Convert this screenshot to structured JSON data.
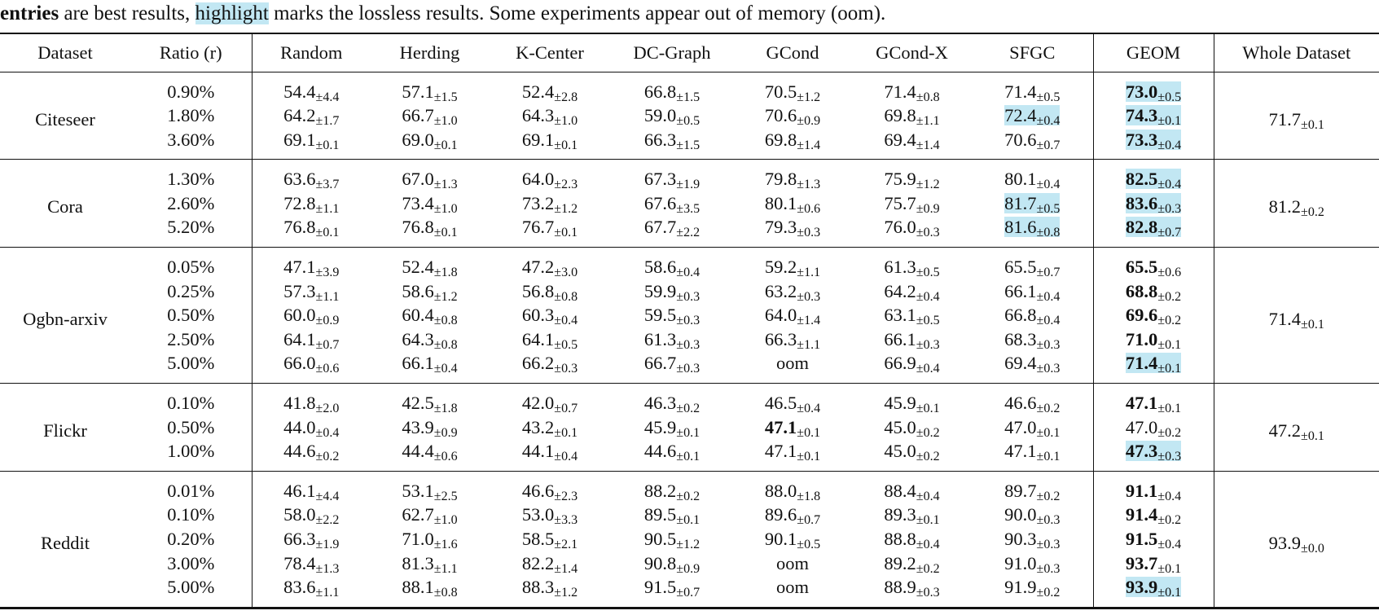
{
  "caption": [
    {
      "text": "entries",
      "bold": true
    },
    {
      "text": " are best results, "
    },
    {
      "text": "highlight",
      "highlight": true
    },
    {
      "text": " marks the lossless results. Some experiments appear out of memory (oom)."
    }
  ],
  "table": {
    "header": [
      "Dataset",
      "Ratio (r)",
      "Random",
      "Herding",
      "K-Center",
      "DC-Graph",
      "GCond",
      "GCond-X",
      "SFGC",
      "GEOM",
      "Whole Dataset"
    ],
    "groups": [
      {
        "dataset": "Citeseer",
        "whole": {
          "v": "71.7",
          "s": "±0.1"
        },
        "rows": [
          {
            "ratio": "0.90%",
            "cells": [
              {
                "v": "54.4",
                "s": "±4.4"
              },
              {
                "v": "57.1",
                "s": "±1.5"
              },
              {
                "v": "52.4",
                "s": "±2.8"
              },
              {
                "v": "66.8",
                "s": "±1.5"
              },
              {
                "v": "70.5",
                "s": "±1.2"
              },
              {
                "v": "71.4",
                "s": "±0.8"
              },
              {
                "v": "71.4",
                "s": "±0.5"
              },
              {
                "v": "73.0",
                "s": "±0.5",
                "bold": true,
                "highlight": true
              }
            ]
          },
          {
            "ratio": "1.80%",
            "cells": [
              {
                "v": "64.2",
                "s": "±1.7"
              },
              {
                "v": "66.7",
                "s": "±1.0"
              },
              {
                "v": "64.3",
                "s": "±1.0"
              },
              {
                "v": "59.0",
                "s": "±0.5"
              },
              {
                "v": "70.6",
                "s": "±0.9"
              },
              {
                "v": "69.8",
                "s": "±1.1"
              },
              {
                "v": "72.4",
                "s": "±0.4",
                "highlight": true
              },
              {
                "v": "74.3",
                "s": "±0.1",
                "bold": true,
                "highlight": true
              }
            ]
          },
          {
            "ratio": "3.60%",
            "cells": [
              {
                "v": "69.1",
                "s": "±0.1"
              },
              {
                "v": "69.0",
                "s": "±0.1"
              },
              {
                "v": "69.1",
                "s": "±0.1"
              },
              {
                "v": "66.3",
                "s": "±1.5"
              },
              {
                "v": "69.8",
                "s": "±1.4"
              },
              {
                "v": "69.4",
                "s": "±1.4"
              },
              {
                "v": "70.6",
                "s": "±0.7"
              },
              {
                "v": "73.3",
                "s": "±0.4",
                "bold": true,
                "highlight": true
              }
            ]
          }
        ]
      },
      {
        "dataset": "Cora",
        "whole": {
          "v": "81.2",
          "s": "±0.2"
        },
        "rows": [
          {
            "ratio": "1.30%",
            "cells": [
              {
                "v": "63.6",
                "s": "±3.7"
              },
              {
                "v": "67.0",
                "s": "±1.3"
              },
              {
                "v": "64.0",
                "s": "±2.3"
              },
              {
                "v": "67.3",
                "s": "±1.9"
              },
              {
                "v": "79.8",
                "s": "±1.3"
              },
              {
                "v": "75.9",
                "s": "±1.2"
              },
              {
                "v": "80.1",
                "s": "±0.4"
              },
              {
                "v": "82.5",
                "s": "±0.4",
                "bold": true,
                "highlight": true
              }
            ]
          },
          {
            "ratio": "2.60%",
            "cells": [
              {
                "v": "72.8",
                "s": "±1.1"
              },
              {
                "v": "73.4",
                "s": "±1.0"
              },
              {
                "v": "73.2",
                "s": "±1.2"
              },
              {
                "v": "67.6",
                "s": "±3.5"
              },
              {
                "v": "80.1",
                "s": "±0.6"
              },
              {
                "v": "75.7",
                "s": "±0.9"
              },
              {
                "v": "81.7",
                "s": "±0.5",
                "highlight": true
              },
              {
                "v": "83.6",
                "s": "±0.3",
                "bold": true,
                "highlight": true
              }
            ]
          },
          {
            "ratio": "5.20%",
            "cells": [
              {
                "v": "76.8",
                "s": "±0.1"
              },
              {
                "v": "76.8",
                "s": "±0.1"
              },
              {
                "v": "76.7",
                "s": "±0.1"
              },
              {
                "v": "67.7",
                "s": "±2.2"
              },
              {
                "v": "79.3",
                "s": "±0.3"
              },
              {
                "v": "76.0",
                "s": "±0.3"
              },
              {
                "v": "81.6",
                "s": "±0.8",
                "highlight": true
              },
              {
                "v": "82.8",
                "s": "±0.7",
                "bold": true,
                "highlight": true
              }
            ]
          }
        ]
      },
      {
        "dataset": "Ogbn-arxiv",
        "whole": {
          "v": "71.4",
          "s": "±0.1"
        },
        "rows": [
          {
            "ratio": "0.05%",
            "cells": [
              {
                "v": "47.1",
                "s": "±3.9"
              },
              {
                "v": "52.4",
                "s": "±1.8"
              },
              {
                "v": "47.2",
                "s": "±3.0"
              },
              {
                "v": "58.6",
                "s": "±0.4"
              },
              {
                "v": "59.2",
                "s": "±1.1"
              },
              {
                "v": "61.3",
                "s": "±0.5"
              },
              {
                "v": "65.5",
                "s": "±0.7"
              },
              {
                "v": "65.5",
                "s": "±0.6",
                "bold": true
              }
            ]
          },
          {
            "ratio": "0.25%",
            "cells": [
              {
                "v": "57.3",
                "s": "±1.1"
              },
              {
                "v": "58.6",
                "s": "±1.2"
              },
              {
                "v": "56.8",
                "s": "±0.8"
              },
              {
                "v": "59.9",
                "s": "±0.3"
              },
              {
                "v": "63.2",
                "s": "±0.3"
              },
              {
                "v": "64.2",
                "s": "±0.4"
              },
              {
                "v": "66.1",
                "s": "±0.4"
              },
              {
                "v": "68.8",
                "s": "±0.2",
                "bold": true
              }
            ]
          },
          {
            "ratio": "0.50%",
            "cells": [
              {
                "v": "60.0",
                "s": "±0.9"
              },
              {
                "v": "60.4",
                "s": "±0.8"
              },
              {
                "v": "60.3",
                "s": "±0.4"
              },
              {
                "v": "59.5",
                "s": "±0.3"
              },
              {
                "v": "64.0",
                "s": "±1.4"
              },
              {
                "v": "63.1",
                "s": "±0.5"
              },
              {
                "v": "66.8",
                "s": "±0.4"
              },
              {
                "v": "69.6",
                "s": "±0.2",
                "bold": true
              }
            ]
          },
          {
            "ratio": "2.50%",
            "cells": [
              {
                "v": "64.1",
                "s": "±0.7"
              },
              {
                "v": "64.3",
                "s": "±0.8"
              },
              {
                "v": "64.1",
                "s": "±0.5"
              },
              {
                "v": "61.3",
                "s": "±0.3"
              },
              {
                "v": "66.3",
                "s": "±1.1"
              },
              {
                "v": "66.1",
                "s": "±0.3"
              },
              {
                "v": "68.3",
                "s": "±0.3"
              },
              {
                "v": "71.0",
                "s": "±0.1",
                "bold": true
              }
            ]
          },
          {
            "ratio": "5.00%",
            "cells": [
              {
                "v": "66.0",
                "s": "±0.6"
              },
              {
                "v": "66.1",
                "s": "±0.4"
              },
              {
                "v": "66.2",
                "s": "±0.3"
              },
              {
                "v": "66.7",
                "s": "±0.3"
              },
              {
                "v": "oom"
              },
              {
                "v": "66.9",
                "s": "±0.4"
              },
              {
                "v": "69.4",
                "s": "±0.3"
              },
              {
                "v": "71.4",
                "s": "±0.1",
                "bold": true,
                "highlight": true
              }
            ]
          }
        ]
      },
      {
        "dataset": "Flickr",
        "whole": {
          "v": "47.2",
          "s": "±0.1"
        },
        "rows": [
          {
            "ratio": "0.10%",
            "cells": [
              {
                "v": "41.8",
                "s": "±2.0"
              },
              {
                "v": "42.5",
                "s": "±1.8"
              },
              {
                "v": "42.0",
                "s": "±0.7"
              },
              {
                "v": "46.3",
                "s": "±0.2"
              },
              {
                "v": "46.5",
                "s": "±0.4"
              },
              {
                "v": "45.9",
                "s": "±0.1"
              },
              {
                "v": "46.6",
                "s": "±0.2"
              },
              {
                "v": "47.1",
                "s": "±0.1",
                "bold": true
              }
            ]
          },
          {
            "ratio": "0.50%",
            "cells": [
              {
                "v": "44.0",
                "s": "±0.4"
              },
              {
                "v": "43.9",
                "s": "±0.9"
              },
              {
                "v": "43.2",
                "s": "±0.1"
              },
              {
                "v": "45.9",
                "s": "±0.1"
              },
              {
                "v": "47.1",
                "s": "±0.1",
                "bold": true
              },
              {
                "v": "45.0",
                "s": "±0.2"
              },
              {
                "v": "47.0",
                "s": "±0.1"
              },
              {
                "v": "47.0",
                "s": "±0.2"
              }
            ]
          },
          {
            "ratio": "1.00%",
            "cells": [
              {
                "v": "44.6",
                "s": "±0.2"
              },
              {
                "v": "44.4",
                "s": "±0.6"
              },
              {
                "v": "44.1",
                "s": "±0.4"
              },
              {
                "v": "44.6",
                "s": "±0.1"
              },
              {
                "v": "47.1",
                "s": "±0.1"
              },
              {
                "v": "45.0",
                "s": "±0.2"
              },
              {
                "v": "47.1",
                "s": "±0.1"
              },
              {
                "v": "47.3",
                "s": "±0.3",
                "bold": true,
                "highlight": true
              }
            ]
          }
        ]
      },
      {
        "dataset": "Reddit",
        "whole": {
          "v": "93.9",
          "s": "±0.0"
        },
        "rows": [
          {
            "ratio": "0.01%",
            "cells": [
              {
                "v": "46.1",
                "s": "±4.4"
              },
              {
                "v": "53.1",
                "s": "±2.5"
              },
              {
                "v": "46.6",
                "s": "±2.3"
              },
              {
                "v": "88.2",
                "s": "±0.2"
              },
              {
                "v": "88.0",
                "s": "±1.8"
              },
              {
                "v": "88.4",
                "s": "±0.4"
              },
              {
                "v": "89.7",
                "s": "±0.2"
              },
              {
                "v": "91.1",
                "s": "±0.4",
                "bold": true
              }
            ]
          },
          {
            "ratio": "0.10%",
            "cells": [
              {
                "v": "58.0",
                "s": "±2.2"
              },
              {
                "v": "62.7",
                "s": "±1.0"
              },
              {
                "v": "53.0",
                "s": "±3.3"
              },
              {
                "v": "89.5",
                "s": "±0.1"
              },
              {
                "v": "89.6",
                "s": "±0.7"
              },
              {
                "v": "89.3",
                "s": "±0.1"
              },
              {
                "v": "90.0",
                "s": "±0.3"
              },
              {
                "v": "91.4",
                "s": "±0.2",
                "bold": true
              }
            ]
          },
          {
            "ratio": "0.20%",
            "cells": [
              {
                "v": "66.3",
                "s": "±1.9"
              },
              {
                "v": "71.0",
                "s": "±1.6"
              },
              {
                "v": "58.5",
                "s": "±2.1"
              },
              {
                "v": "90.5",
                "s": "±1.2"
              },
              {
                "v": "90.1",
                "s": "±0.5"
              },
              {
                "v": "88.8",
                "s": "±0.4"
              },
              {
                "v": "90.3",
                "s": "±0.3"
              },
              {
                "v": "91.5",
                "s": "±0.4",
                "bold": true
              }
            ]
          },
          {
            "ratio": "3.00%",
            "cells": [
              {
                "v": "78.4",
                "s": "±1.3"
              },
              {
                "v": "81.3",
                "s": "±1.1"
              },
              {
                "v": "82.2",
                "s": "±1.4"
              },
              {
                "v": "90.8",
                "s": "±0.9"
              },
              {
                "v": "oom"
              },
              {
                "v": "89.2",
                "s": "±0.2"
              },
              {
                "v": "91.0",
                "s": "±0.3"
              },
              {
                "v": "93.7",
                "s": "±0.1",
                "bold": true
              }
            ]
          },
          {
            "ratio": "5.00%",
            "cells": [
              {
                "v": "83.6",
                "s": "±1.1"
              },
              {
                "v": "88.1",
                "s": "±0.8"
              },
              {
                "v": "88.3",
                "s": "±1.2"
              },
              {
                "v": "91.5",
                "s": "±0.7"
              },
              {
                "v": "oom"
              },
              {
                "v": "88.9",
                "s": "±0.3"
              },
              {
                "v": "91.9",
                "s": "±0.2"
              },
              {
                "v": "93.9",
                "s": "±0.1",
                "bold": true,
                "highlight": true
              }
            ]
          }
        ]
      }
    ]
  }
}
